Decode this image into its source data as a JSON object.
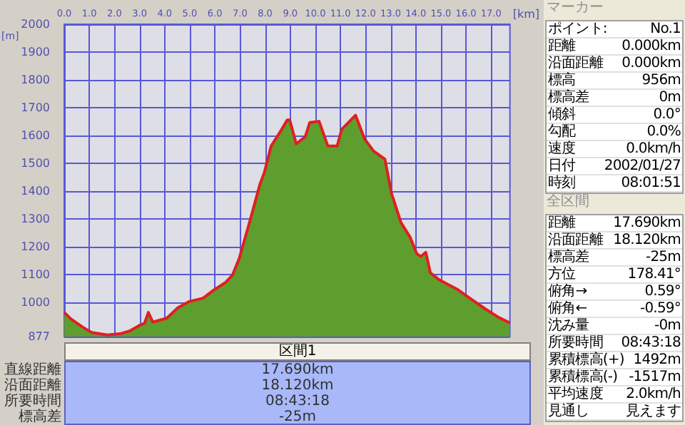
{
  "chart_data": [
    {
      "type": "area",
      "xlabel": "[km]",
      "ylabel": "[m]",
      "grid": true,
      "series": [
        {
          "type": "area",
          "color": "#5e9e2e",
          "values": [
            964,
            940,
            912,
            892,
            883,
            888,
            898,
            917,
            925,
            964,
            929,
            943,
            981,
            1003,
            1015,
            1046,
            1072,
            1098,
            1158,
            1218,
            1304,
            1424,
            1467,
            1562,
            1613,
            1656,
            1656,
            1570,
            1596,
            1647,
            1651,
            1562,
            1562,
            1622,
            1673,
            1588,
            1544,
            1515,
            1390,
            1287,
            1235,
            1175,
            1165,
            1180,
            1106,
            1080,
            1046,
            1012,
            977,
            946,
            926
          ]
        },
        {
          "type": "line",
          "color": "#e02020",
          "values": [
            964,
            940,
            912,
            892,
            883,
            888,
            898,
            917,
            925,
            964,
            929,
            943,
            981,
            1003,
            1015,
            1046,
            1072,
            1098,
            1158,
            1218,
            1304,
            1424,
            1467,
            1562,
            1613,
            1656,
            1656,
            1570,
            1596,
            1647,
            1651,
            1562,
            1562,
            1622,
            1673,
            1588,
            1544,
            1515,
            1390,
            1287,
            1235,
            1175,
            1165,
            1180,
            1106,
            1080,
            1046,
            1012,
            977,
            946,
            926
          ]
        }
      ],
      "x": [
        0,
        0.27,
        0.72,
        1.09,
        1.72,
        2.27,
        2.63,
        2.99,
        3.2,
        3.35,
        3.53,
        4.08,
        4.53,
        4.98,
        5.53,
        5.98,
        6.43,
        6.7,
        6.97,
        7.16,
        7.43,
        7.79,
        7.97,
        8.24,
        8.6,
        8.88,
        8.98,
        9.24,
        9.6,
        9.78,
        10.15,
        10.5,
        10.87,
        11.05,
        11.6,
        11.96,
        12.32,
        12.77,
        13.04,
        13.41,
        13.77,
        14.04,
        14.2,
        14.4,
        14.58,
        14.95,
        15.67,
        16.2,
        16.76,
        17.3,
        17.75
      ],
      "xlim": [
        0,
        17.75
      ],
      "xticks": [
        {
          "value": 0,
          "label": "0.0"
        },
        {
          "value": 1,
          "label": "1.0"
        },
        {
          "value": 2,
          "label": "2.0"
        },
        {
          "value": 3,
          "label": "3.0"
        },
        {
          "value": 4,
          "label": "4.0"
        },
        {
          "value": 5,
          "label": "5.0"
        },
        {
          "value": 6,
          "label": "6.0"
        },
        {
          "value": 7,
          "label": "7.0"
        },
        {
          "value": 8,
          "label": "8.0"
        },
        {
          "value": 9,
          "label": "9.0"
        },
        {
          "value": 10,
          "label": "10.0"
        },
        {
          "value": 11,
          "label": "11.0"
        },
        {
          "value": 12,
          "label": "12.0"
        },
        {
          "value": 13,
          "label": "13.0"
        },
        {
          "value": 14,
          "label": "14.0"
        },
        {
          "value": 15,
          "label": "15.0"
        },
        {
          "value": 16,
          "label": "16.0"
        },
        {
          "value": 17,
          "label": "17.0"
        }
      ],
      "ylim": [
        877,
        2000
      ],
      "yticks": [
        877,
        1000,
        1100,
        1200,
        1300,
        1400,
        1500,
        1600,
        1700,
        1800,
        1900,
        2000
      ]
    },
    {
      "type": "other",
      "title": "区間1",
      "annotations": [
        "直線距離",
        "17.690km",
        "沿面距離",
        "18.120km",
        "所要時間",
        "08:43:18",
        "標高差",
        "-25m"
      ]
    },
    {
      "type": "other",
      "title": "マーカー",
      "annotations": [
        "ポイント:",
        "No.1",
        "距離",
        "0.000km",
        "沿面距離",
        "0.000km",
        "標高",
        "956m",
        "標高差",
        "0m",
        "傾斜",
        "0.0°",
        "勾配",
        "0.0%",
        "速度",
        "0.0km/h",
        "日付",
        "2002/01/27",
        "時刻",
        "08:01:51"
      ]
    },
    {
      "type": "other",
      "title": "全区間",
      "annotations": [
        "距離",
        "17.690km",
        "沿面距離",
        "18.120km",
        "標高差",
        "-25m",
        "方位",
        "178.41°",
        "俯角→",
        "0.59°",
        "俯角←",
        "-0.59°",
        "沈み量",
        "-0m",
        "所要時間",
        "08:43:18",
        "累積標高(+)",
        "1492m",
        "累積標高(-)",
        "-1517m",
        "平均速度",
        "2.0km/h",
        "見通し",
        "見えます"
      ]
    }
  ]
}
